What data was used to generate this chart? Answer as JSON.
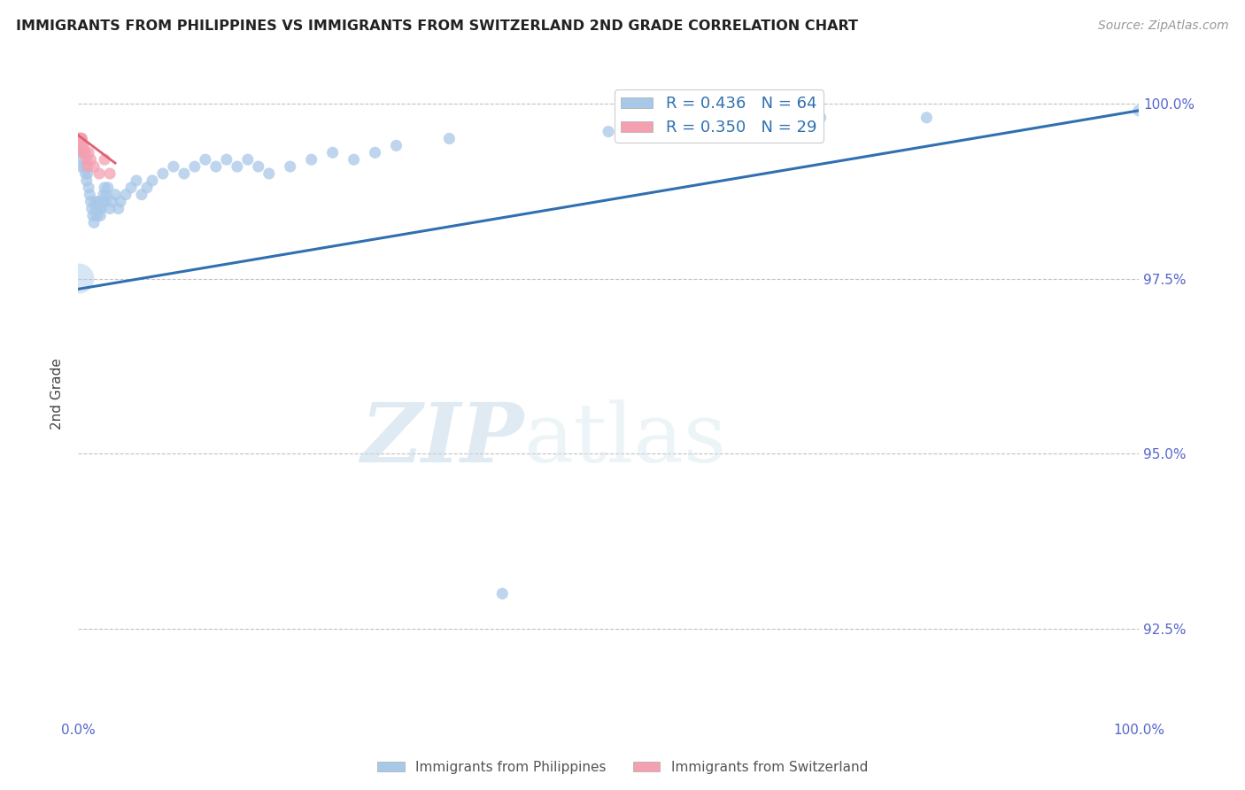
{
  "title": "IMMIGRANTS FROM PHILIPPINES VS IMMIGRANTS FROM SWITZERLAND 2ND GRADE CORRELATION CHART",
  "source": "Source: ZipAtlas.com",
  "ylabel": "2nd Grade",
  "legend_blue_label": "Immigrants from Philippines",
  "legend_pink_label": "Immigrants from Switzerland",
  "R_blue": 0.436,
  "N_blue": 64,
  "R_pink": 0.35,
  "N_pink": 29,
  "blue_color": "#a8c8e8",
  "pink_color": "#f4a0b0",
  "blue_line_color": "#3070b0",
  "pink_line_color": "#e06070",
  "blue_scatter": [
    [
      0.2,
      99.1
    ],
    [
      0.3,
      99.3
    ],
    [
      0.4,
      99.3
    ],
    [
      0.5,
      99.2
    ],
    [
      0.6,
      99.1
    ],
    [
      0.7,
      99.0
    ],
    [
      0.8,
      98.9
    ],
    [
      0.9,
      99.0
    ],
    [
      1.0,
      98.8
    ],
    [
      1.1,
      98.7
    ],
    [
      1.2,
      98.6
    ],
    [
      1.3,
      98.5
    ],
    [
      1.4,
      98.4
    ],
    [
      1.5,
      98.3
    ],
    [
      1.6,
      98.6
    ],
    [
      1.7,
      98.5
    ],
    [
      1.8,
      98.4
    ],
    [
      1.9,
      98.6
    ],
    [
      2.0,
      98.5
    ],
    [
      2.1,
      98.4
    ],
    [
      2.2,
      98.5
    ],
    [
      2.3,
      98.6
    ],
    [
      2.4,
      98.7
    ],
    [
      2.5,
      98.8
    ],
    [
      2.6,
      98.6
    ],
    [
      2.7,
      98.7
    ],
    [
      2.8,
      98.8
    ],
    [
      3.0,
      98.5
    ],
    [
      3.2,
      98.6
    ],
    [
      3.5,
      98.7
    ],
    [
      3.8,
      98.5
    ],
    [
      4.0,
      98.6
    ],
    [
      4.5,
      98.7
    ],
    [
      5.0,
      98.8
    ],
    [
      5.5,
      98.9
    ],
    [
      6.0,
      98.7
    ],
    [
      6.5,
      98.8
    ],
    [
      7.0,
      98.9
    ],
    [
      8.0,
      99.0
    ],
    [
      9.0,
      99.1
    ],
    [
      10.0,
      99.0
    ],
    [
      11.0,
      99.1
    ],
    [
      12.0,
      99.2
    ],
    [
      13.0,
      99.1
    ],
    [
      14.0,
      99.2
    ],
    [
      15.0,
      99.1
    ],
    [
      16.0,
      99.2
    ],
    [
      17.0,
      99.1
    ],
    [
      18.0,
      99.0
    ],
    [
      20.0,
      99.1
    ],
    [
      22.0,
      99.2
    ],
    [
      24.0,
      99.3
    ],
    [
      26.0,
      99.2
    ],
    [
      28.0,
      99.3
    ],
    [
      30.0,
      99.4
    ],
    [
      35.0,
      99.5
    ],
    [
      40.0,
      93.0
    ],
    [
      50.0,
      99.6
    ],
    [
      55.0,
      99.6
    ],
    [
      60.0,
      99.7
    ],
    [
      65.0,
      99.7
    ],
    [
      70.0,
      99.8
    ],
    [
      80.0,
      99.8
    ],
    [
      100.0,
      99.9
    ]
  ],
  "pink_scatter": [
    [
      0.05,
      99.5
    ],
    [
      0.07,
      99.5
    ],
    [
      0.09,
      99.5
    ],
    [
      0.11,
      99.5
    ],
    [
      0.13,
      99.5
    ],
    [
      0.15,
      99.5
    ],
    [
      0.17,
      99.5
    ],
    [
      0.19,
      99.5
    ],
    [
      0.21,
      99.5
    ],
    [
      0.23,
      99.5
    ],
    [
      0.25,
      99.4
    ],
    [
      0.27,
      99.5
    ],
    [
      0.29,
      99.5
    ],
    [
      0.31,
      99.5
    ],
    [
      0.33,
      99.5
    ],
    [
      0.35,
      99.5
    ],
    [
      0.4,
      99.4
    ],
    [
      0.45,
      99.3
    ],
    [
      0.5,
      99.4
    ],
    [
      0.6,
      99.3
    ],
    [
      0.7,
      99.3
    ],
    [
      0.8,
      99.2
    ],
    [
      0.9,
      99.1
    ],
    [
      1.0,
      99.3
    ],
    [
      1.2,
      99.2
    ],
    [
      1.5,
      99.1
    ],
    [
      2.0,
      99.0
    ],
    [
      2.5,
      99.2
    ],
    [
      3.0,
      99.0
    ]
  ],
  "blue_line_x": [
    0,
    100
  ],
  "blue_line_y": [
    97.35,
    99.9
  ],
  "pink_line_x": [
    0.0,
    3.5
  ],
  "pink_line_y": [
    99.55,
    99.15
  ],
  "xlim": [
    0,
    100
  ],
  "ylim": [
    91.2,
    100.5
  ],
  "yticks": [
    92.5,
    95.0,
    97.5,
    100.0
  ],
  "watermark_zip": "ZIP",
  "watermark_atlas": "atlas",
  "background_color": "#ffffff",
  "grid_color": "#bbbbbb",
  "tick_color": "#5566cc"
}
